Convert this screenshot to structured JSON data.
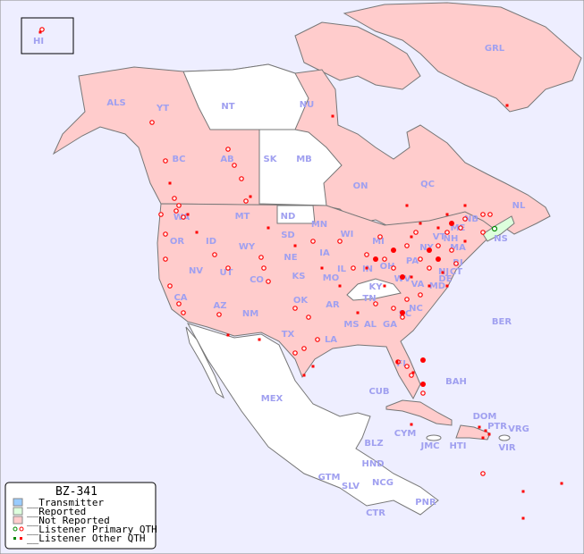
{
  "map": {
    "colors": {
      "ocean": "#eeeeff",
      "not_reported": "#ffcccc",
      "reported": "#ddffdd",
      "transmitter": "#99ccff",
      "unlisted": "#ffffff",
      "border": "#888888",
      "label": "#a0a0f0",
      "dot": "#ff0000",
      "primary_dot_home": "#008000"
    },
    "labels": [
      "HI",
      "ALS",
      "YT",
      "NT",
      "NU",
      "GRL",
      "BC",
      "AB",
      "SK",
      "MB",
      "ON",
      "QC",
      "NL",
      "NB",
      "NS",
      "WA",
      "OR",
      "ID",
      "MT",
      "WY",
      "ND",
      "SD",
      "NE",
      "MN",
      "WI",
      "IA",
      "IL",
      "IN",
      "OH",
      "MI",
      "PA",
      "NY",
      "VT",
      "NH",
      "ME",
      "MA",
      "CT",
      "RI",
      "NJ",
      "DE",
      "MD",
      "WV",
      "VA",
      "KY",
      "TN",
      "NC",
      "SC",
      "GA",
      "AL",
      "MS",
      "LA",
      "AR",
      "MO",
      "KS",
      "OK",
      "TX",
      "NM",
      "AZ",
      "UT",
      "CO",
      "NV",
      "CA",
      "FL",
      "BER",
      "BAH",
      "CUB",
      "MEX",
      "DOM",
      "PTR",
      "VRG",
      "VIR",
      "HTI",
      "JMC",
      "CYM",
      "BLZ",
      "GTM",
      "HND",
      "SLV",
      "NCG",
      "CTR",
      "PNR"
    ]
  },
  "legend": {
    "title": "BZ-341",
    "items": [
      {
        "label": "__Transmitter",
        "color": "#99ccff",
        "kind": "swatch"
      },
      {
        "label": "__Reported",
        "color": "#ddffdd",
        "kind": "swatch"
      },
      {
        "label": "__Not Reported",
        "color": "#ffcccc",
        "kind": "swatch"
      },
      {
        "label": "__Listener Primary QTH",
        "kind": "circle"
      },
      {
        "label": "__Listener Other QTH",
        "kind": "square"
      }
    ]
  }
}
